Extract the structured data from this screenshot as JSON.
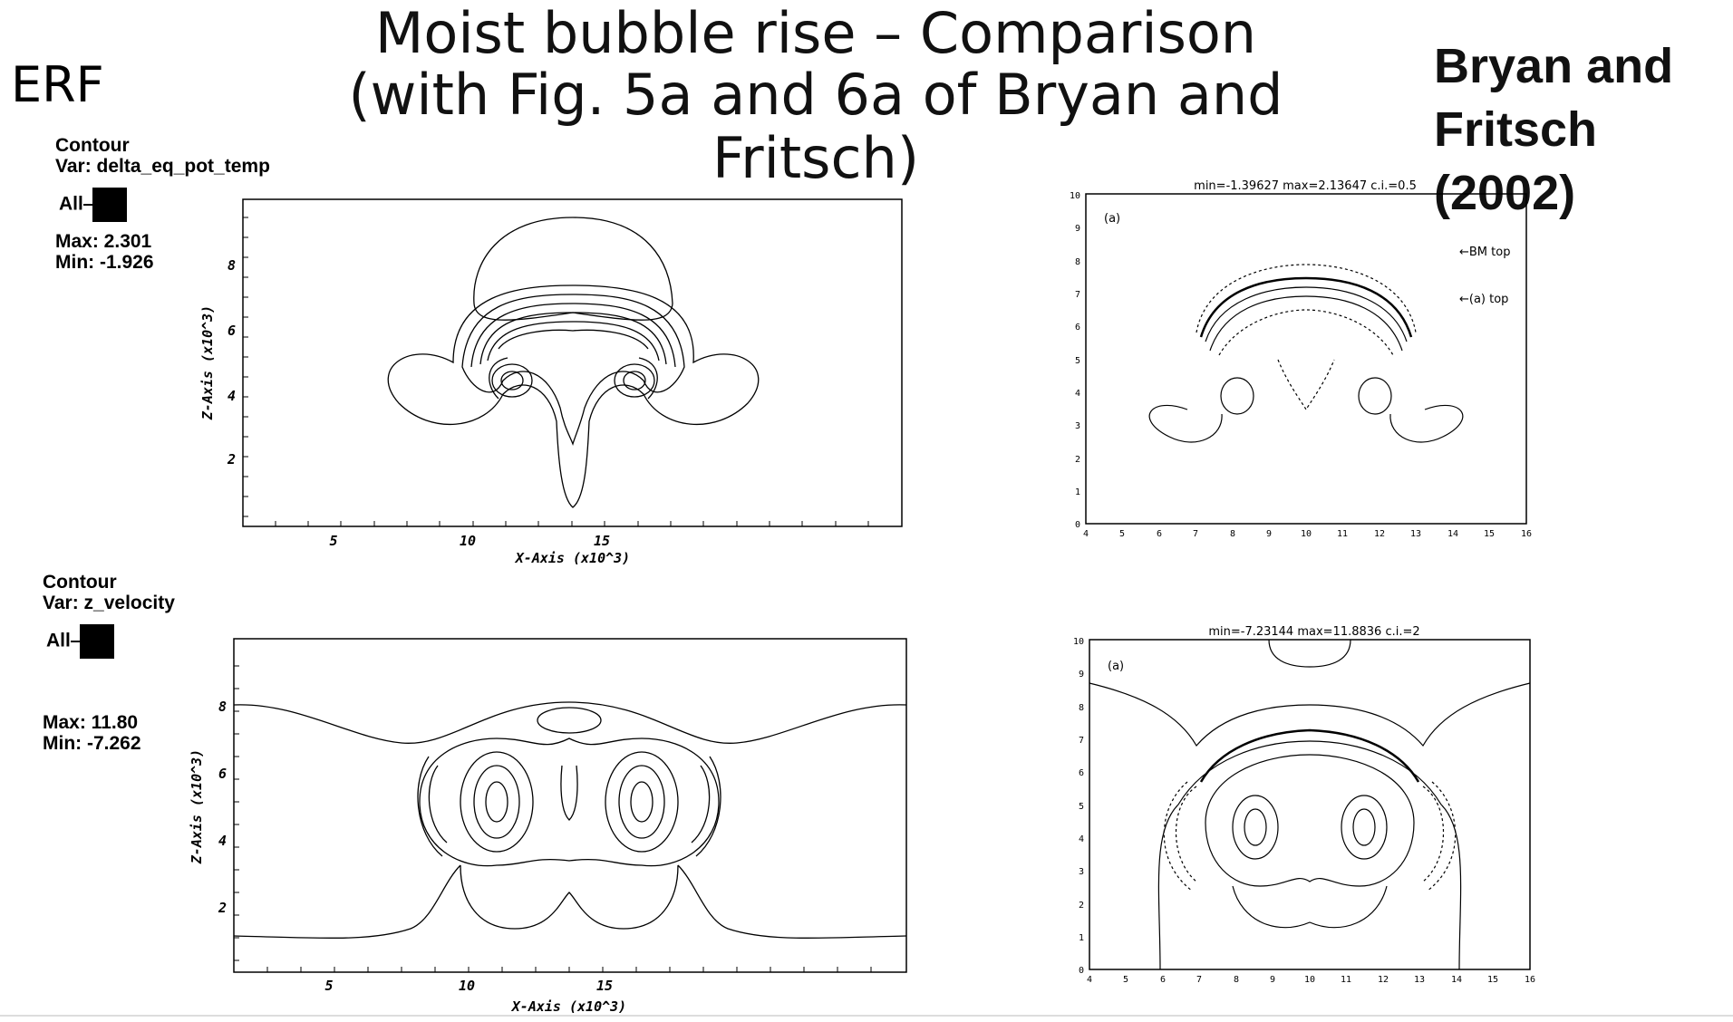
{
  "title": {
    "line1": "Moist bubble rise – Comparison",
    "line2": "(with Fig. 5a and 6a of Bryan and Fritsch)"
  },
  "erf_label": "ERF",
  "reference_label": {
    "line1": "Bryan and",
    "line2": "Fritsch (2002)"
  },
  "erf_panels": [
    {
      "legend": {
        "heading": "Contour",
        "var": "Var: delta_eq_pot_temp",
        "all": "All",
        "max": "Max:  2.301",
        "min": "Min: -1.926"
      },
      "xlabel": "X-Axis (x10^3)",
      "ylabel": "Z-Axis (x10^3)",
      "xticks": [
        "5",
        "10",
        "15"
      ],
      "yticks": [
        "2",
        "4",
        "6",
        "8"
      ]
    },
    {
      "legend": {
        "heading": "Contour",
        "var": "Var: z_velocity",
        "all": "All",
        "max": "Max:  11.80",
        "min": "Min: -7.262"
      },
      "xlabel": "X-Axis (x10^3)",
      "ylabel": "Z-Axis (x10^3)",
      "xticks": [
        "5",
        "10",
        "15"
      ],
      "yticks": [
        "2",
        "4",
        "6",
        "8"
      ]
    }
  ],
  "reference_panels": [
    {
      "header": "min=-1.39627     max=2.13647     c.i.=0.5",
      "panel_tag": "(a)",
      "annotations": [
        "←BM top",
        "←(a) top"
      ],
      "xticks": [
        "4",
        "5",
        "6",
        "7",
        "8",
        "9",
        "10",
        "11",
        "12",
        "13",
        "14",
        "15",
        "16"
      ],
      "yticks": [
        "0",
        "1",
        "2",
        "3",
        "4",
        "5",
        "6",
        "7",
        "8",
        "9",
        "10"
      ]
    },
    {
      "header": "min=-7.23144     max=11.8836     c.i.=2",
      "panel_tag": "(a)",
      "annotations": [],
      "xticks": [
        "4",
        "5",
        "6",
        "7",
        "8",
        "9",
        "10",
        "11",
        "12",
        "13",
        "14",
        "15",
        "16"
      ],
      "yticks": [
        "0",
        "1",
        "2",
        "3",
        "4",
        "5",
        "6",
        "7",
        "8",
        "9",
        "10"
      ]
    }
  ]
}
